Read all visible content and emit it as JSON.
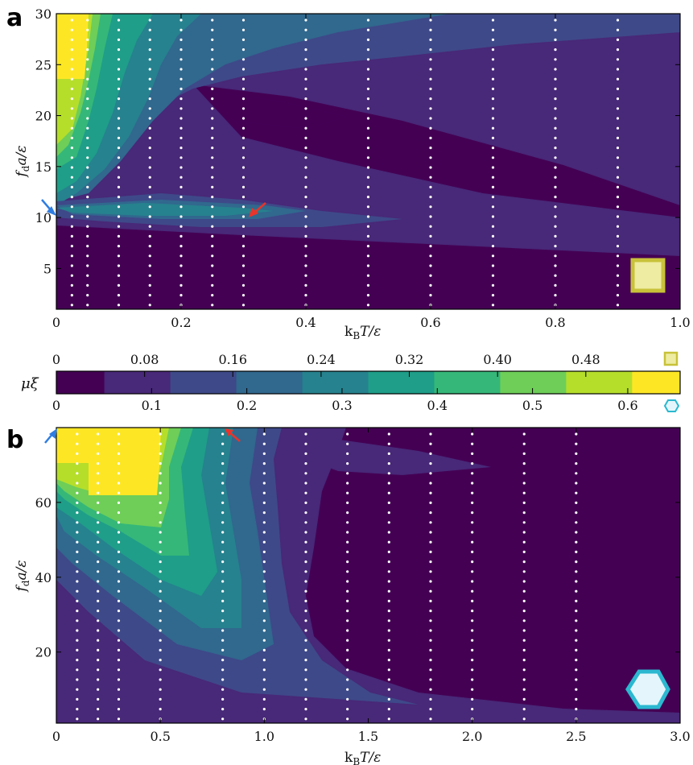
{
  "chart_data": [
    {
      "panel": "a",
      "type": "heatmap",
      "xlabel": "k_B T/ε",
      "ylabel": "f_d a/ε",
      "xlim": [
        0,
        1.0
      ],
      "ylim": [
        1,
        30
      ],
      "xticks": [
        "0",
        "0.2",
        "0.4",
        "0.6",
        "0.8",
        "1.0"
      ],
      "xtick_values": [
        0,
        0.2,
        0.4,
        0.6,
        0.8,
        1.0
      ],
      "yticks": [
        "5",
        "10",
        "15",
        "20",
        "25",
        "30"
      ],
      "ytick_values": [
        5,
        10,
        15,
        20,
        25,
        30
      ],
      "sample_columns_x": [
        0.025,
        0.05,
        0.1,
        0.15,
        0.2,
        0.25,
        0.3,
        0.4,
        0.5,
        0.6,
        0.7,
        0.8,
        0.9
      ],
      "marker_icon": "square-lattice-icon",
      "arrows": [
        {
          "color": "#2f7de1",
          "x": 0.0,
          "y": 10
        },
        {
          "color": "#e8342b",
          "x": 0.31,
          "y": 10.5
        }
      ],
      "colorbar": {
        "label": "μξ",
        "ticks_top": [
          "0",
          "0.08",
          "0.16",
          "0.24",
          "0.32",
          "0.40",
          "0.48"
        ],
        "ticks_top_values": [
          0,
          0.08,
          0.16,
          0.24,
          0.32,
          0.4,
          0.48
        ]
      }
    },
    {
      "panel": "b",
      "type": "heatmap",
      "xlabel": "k_B T/ε",
      "ylabel": "f_d a/ε",
      "xlim": [
        0,
        3.0
      ],
      "ylim": [
        1,
        80
      ],
      "xticks": [
        "0",
        "0.5",
        "1.0",
        "1.5",
        "2.0",
        "2.5",
        "3.0"
      ],
      "xtick_values": [
        0,
        0.5,
        1.0,
        1.5,
        2.0,
        2.5,
        3.0
      ],
      "yticks": [
        "20",
        "40",
        "60"
      ],
      "ytick_values": [
        20,
        40,
        60
      ],
      "sample_columns_x": [
        0.1,
        0.2,
        0.3,
        0.5,
        0.8,
        1.0,
        1.2,
        1.4,
        1.6,
        1.8,
        2.0,
        2.25,
        2.5
      ],
      "marker_icon": "hexagonal-lattice-icon",
      "arrows": [
        {
          "color": "#2f7de1",
          "x": 0.0,
          "y": 80
        },
        {
          "color": "#e8342b",
          "x": 0.85,
          "y": 78
        }
      ],
      "colorbar": {
        "ticks_bottom": [
          "0",
          "0.1",
          "0.2",
          "0.3",
          "0.4",
          "0.5",
          "0.6"
        ],
        "ticks_bottom_values": [
          0,
          0.1,
          0.2,
          0.3,
          0.4,
          0.5,
          0.6
        ]
      }
    }
  ],
  "colors": {
    "levels": [
      "#440154",
      "#482878",
      "#3e4989",
      "#31688e",
      "#26828e",
      "#1f9e89",
      "#35b779",
      "#6ece58",
      "#b5de2b",
      "#fde725"
    ],
    "square_icon": "#c8c23a",
    "hex_icon": "#2bb8d0",
    "arrow_blue": "#2f7de1",
    "arrow_red": "#e8342b"
  },
  "labels": {
    "panel_a": "a",
    "panel_b": "b",
    "xlabel": "k",
    "xlabel_sub": "B",
    "xlabel_rest": "T/ε",
    "ylabel_f": "f",
    "ylabel_sub": "d",
    "ylabel_rest": "a/ε",
    "colorbar_label": "μξ"
  }
}
